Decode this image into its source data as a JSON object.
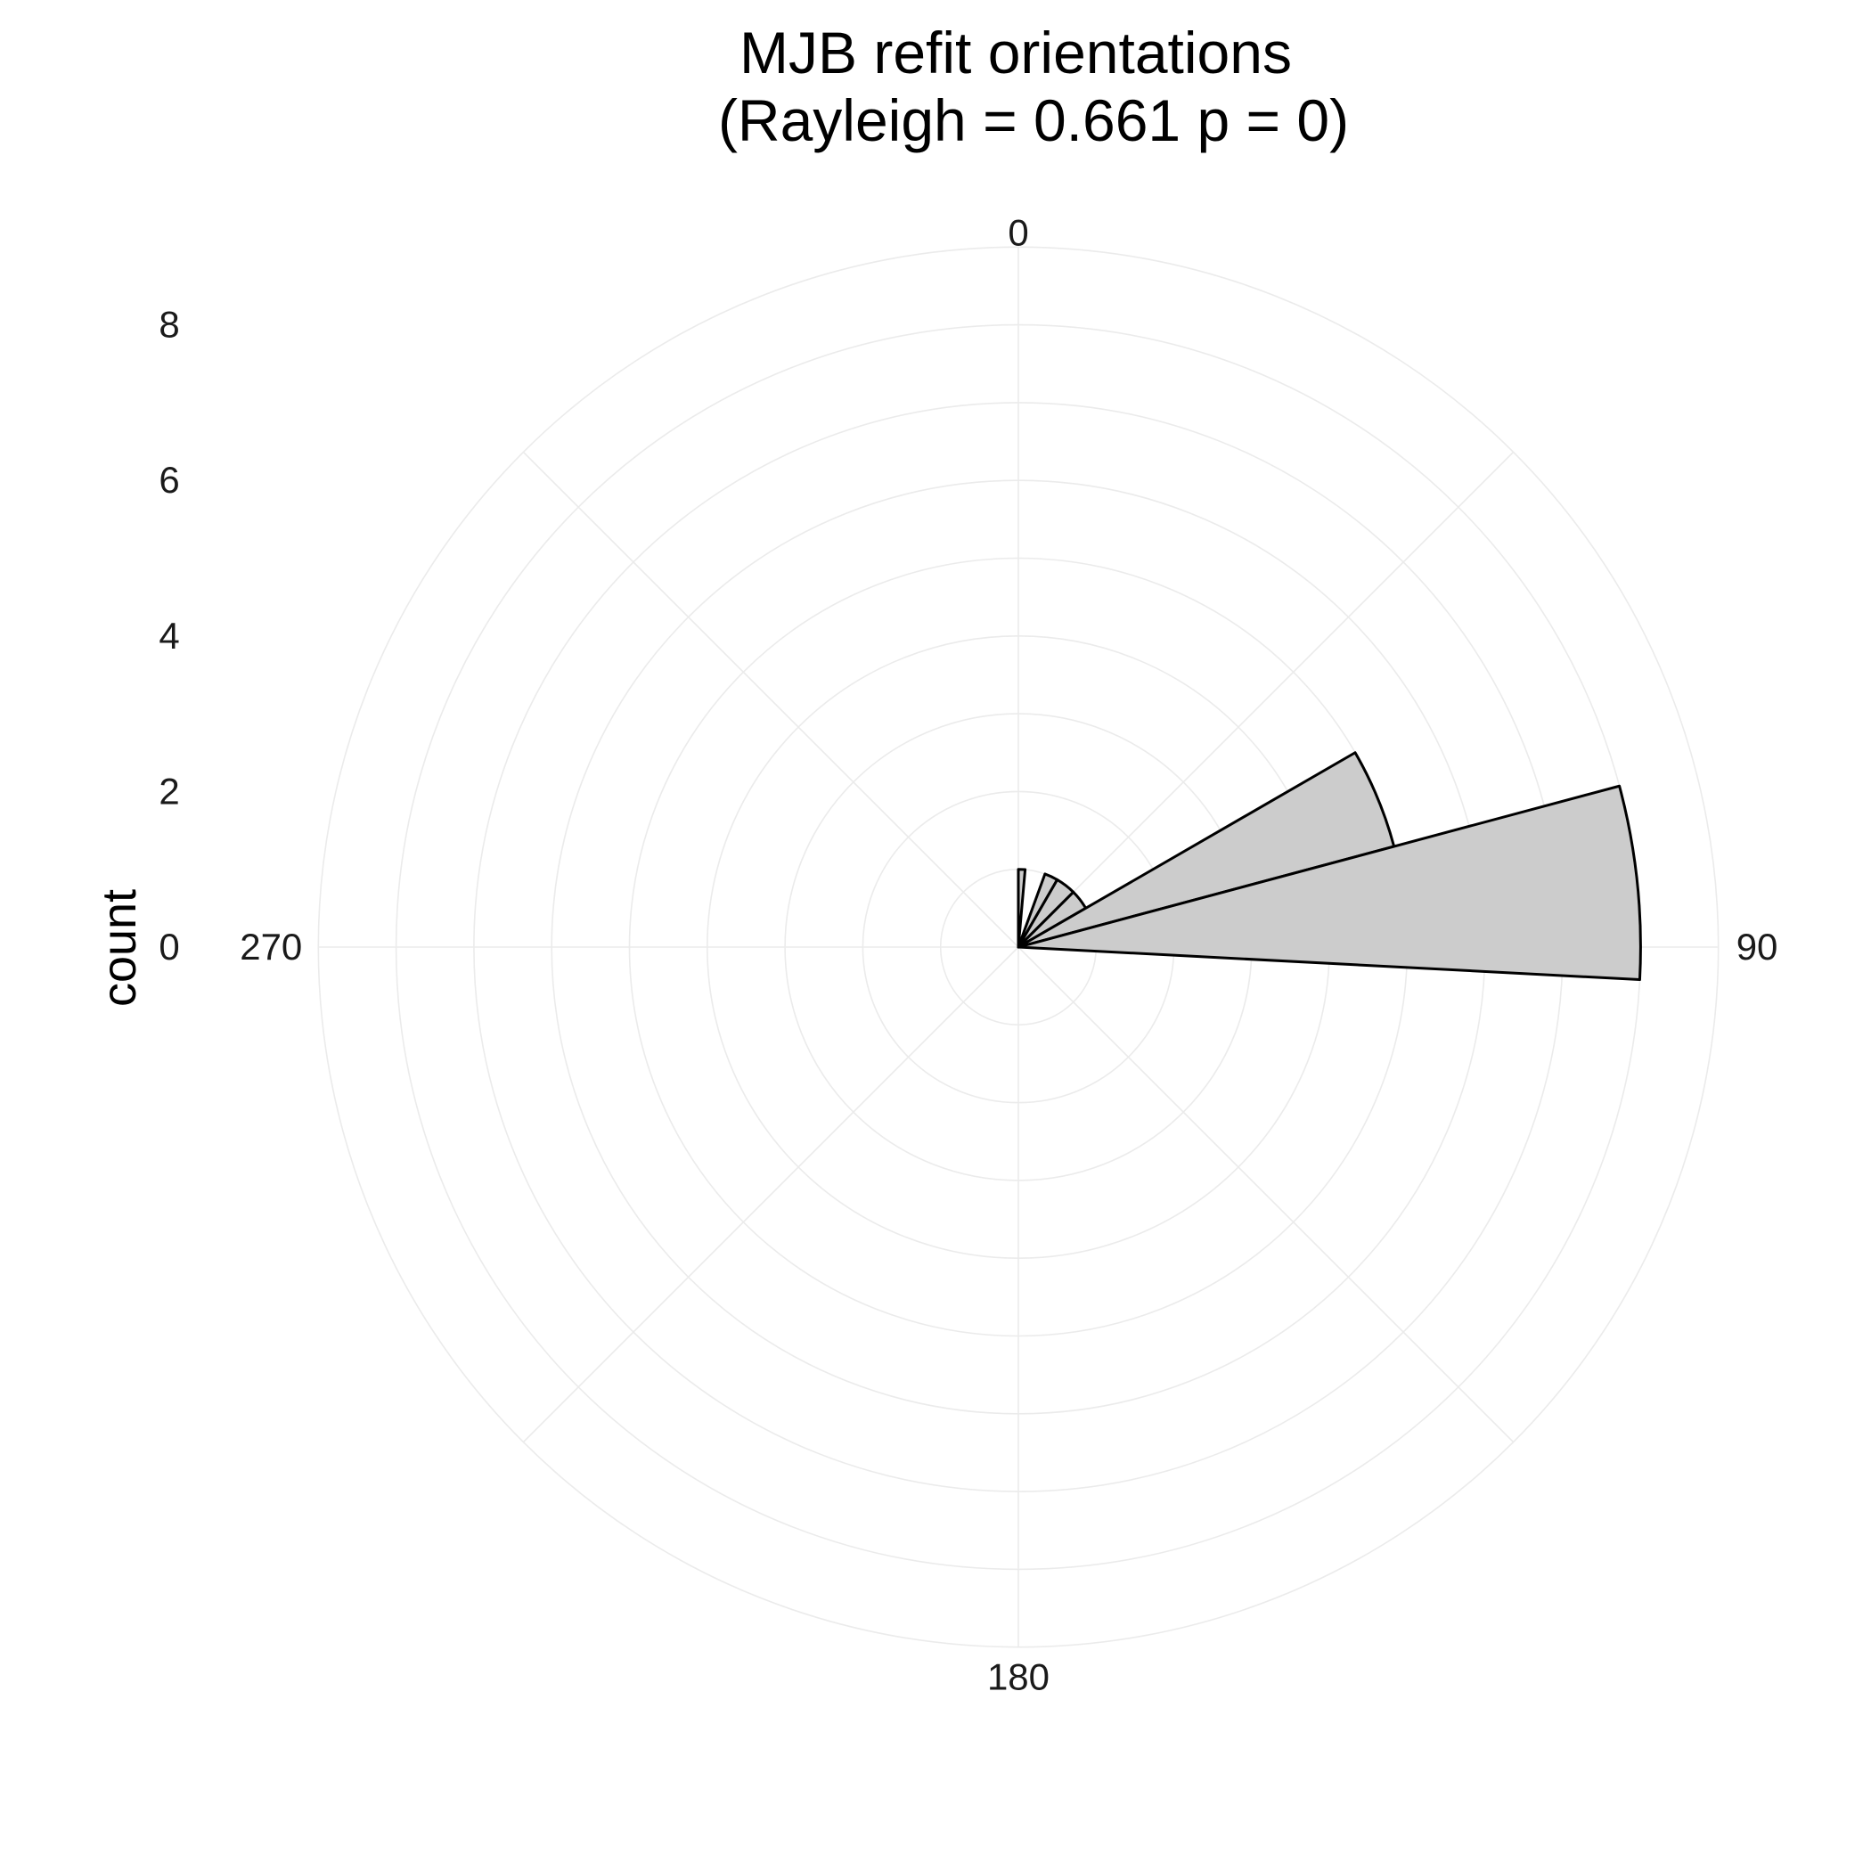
{
  "chart_data": {
    "type": "polar-bar",
    "title_line1": "MJB refit orientations",
    "title_line2": "(Rayleigh = 0.661 p = 0)",
    "ylabel": "count",
    "radial_ticks": [
      "0",
      "2",
      "4",
      "6",
      "8"
    ],
    "radial_tick_values": [
      0,
      2,
      4,
      6,
      8
    ],
    "radial_max": 9,
    "angle_ticks": [
      "0",
      "90",
      "180",
      "270"
    ],
    "angle_tick_values": [
      0,
      90,
      180,
      270
    ],
    "bins": [
      {
        "start": 0,
        "end": 5,
        "count": 1
      },
      {
        "start": 10,
        "end": 15,
        "count": 0
      },
      {
        "start": 15,
        "end": 20,
        "count": 0
      },
      {
        "start": 20,
        "end": 30,
        "count": 1
      },
      {
        "start": 30,
        "end": 45,
        "count": 1
      },
      {
        "start": 45,
        "end": 60,
        "count": 1
      },
      {
        "start": 60,
        "end": 75,
        "count": 5
      },
      {
        "start": 75,
        "end": 93,
        "count": 8
      }
    ],
    "bar_fill": "#cccccc",
    "bar_stroke": "#000000",
    "grid_color": "#ebebeb",
    "legend": "none",
    "grid": true
  }
}
